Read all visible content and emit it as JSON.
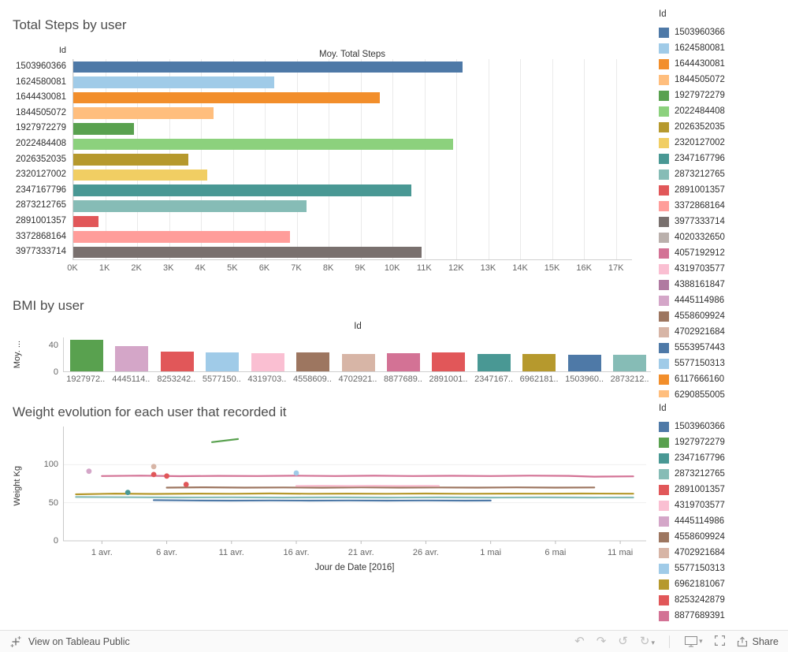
{
  "chart_data": [
    {
      "type": "bar",
      "orientation": "horizontal",
      "title": "Total Steps by user",
      "col_header": "Id",
      "xlabel": "Moy. Total Steps",
      "xlim": [
        0,
        17500
      ],
      "x_ticks": [
        {
          "label": "0K",
          "value": 0
        },
        {
          "label": "1K",
          "value": 1000
        },
        {
          "label": "2K",
          "value": 2000
        },
        {
          "label": "3K",
          "value": 3000
        },
        {
          "label": "4K",
          "value": 4000
        },
        {
          "label": "5K",
          "value": 5000
        },
        {
          "label": "6K",
          "value": 6000
        },
        {
          "label": "7K",
          "value": 7000
        },
        {
          "label": "8K",
          "value": 8000
        },
        {
          "label": "9K",
          "value": 9000
        },
        {
          "label": "10K",
          "value": 10000
        },
        {
          "label": "11K",
          "value": 11000
        },
        {
          "label": "12K",
          "value": 12000
        },
        {
          "label": "13K",
          "value": 13000
        },
        {
          "label": "14K",
          "value": 14000
        },
        {
          "label": "15K",
          "value": 15000
        },
        {
          "label": "16K",
          "value": 16000
        },
        {
          "label": "17K",
          "value": 17000
        }
      ],
      "bars": [
        {
          "id": "1503960366",
          "value": 12200,
          "color": "#4e79a7"
        },
        {
          "id": "1624580081",
          "value": 6300,
          "color": "#a0cbe8"
        },
        {
          "id": "1644430081",
          "value": 9600,
          "color": "#f28e2b"
        },
        {
          "id": "1844505072",
          "value": 4400,
          "color": "#ffbe7d"
        },
        {
          "id": "1927972279",
          "value": 1900,
          "color": "#59a14f"
        },
        {
          "id": "2022484408",
          "value": 11900,
          "color": "#8cd17d"
        },
        {
          "id": "2026352035",
          "value": 3600,
          "color": "#b6992d"
        },
        {
          "id": "2320127002",
          "value": 4200,
          "color": "#f1ce63"
        },
        {
          "id": "2347167796",
          "value": 10600,
          "color": "#499894"
        },
        {
          "id": "2873212765",
          "value": 7300,
          "color": "#86bcb6"
        },
        {
          "id": "2891001357",
          "value": 800,
          "color": "#e15759"
        },
        {
          "id": "3372868164",
          "value": 6800,
          "color": "#ff9d9a"
        },
        {
          "id": "3977333714",
          "value": 10900,
          "color": "#79706e"
        }
      ]
    },
    {
      "type": "bar",
      "orientation": "vertical",
      "title": "BMI by user",
      "col_header": "Id",
      "ylabel": "Moy. ...",
      "ylim": [
        0,
        52
      ],
      "y_ticks": [
        40,
        0
      ],
      "bars": [
        {
          "label": "1927972..",
          "value": 47,
          "color": "#59a14f"
        },
        {
          "label": "4445114..",
          "value": 37.5,
          "color": "#d4a6c8"
        },
        {
          "label": "8253242..",
          "value": 30,
          "color": "#e15759"
        },
        {
          "label": "5577150..",
          "value": 28,
          "color": "#a0cbe8"
        },
        {
          "label": "4319703..",
          "value": 27.5,
          "color": "#fabfd2"
        },
        {
          "label": "4558609..",
          "value": 28,
          "color": "#9d7660"
        },
        {
          "label": "4702921..",
          "value": 26.5,
          "color": "#d7b5a6"
        },
        {
          "label": "8877689..",
          "value": 27.5,
          "color": "#d37295"
        },
        {
          "label": "2891001..",
          "value": 28.5,
          "color": "#e15759"
        },
        {
          "label": "2347167..",
          "value": 26,
          "color": "#499894"
        },
        {
          "label": "6962181..",
          "value": 25.5,
          "color": "#b6992d"
        },
        {
          "label": "1503960..",
          "value": 25,
          "color": "#4e79a7"
        },
        {
          "label": "2873212..",
          "value": 24.5,
          "color": "#86bcb6"
        }
      ]
    },
    {
      "type": "line",
      "title": "Weight evolution for each user that recorded it",
      "ylabel": "Weight Kg",
      "xlabel": "Jour de Date [2016]",
      "ylim": [
        0,
        150
      ],
      "y_ticks": [
        100,
        50,
        0
      ],
      "x_domain_days": [
        -1,
        44
      ],
      "x_ticks": [
        {
          "day": 2,
          "label": "1 avr."
        },
        {
          "day": 7,
          "label": "6 avr."
        },
        {
          "day": 12,
          "label": "11 avr."
        },
        {
          "day": 17,
          "label": "16 avr."
        },
        {
          "day": 22,
          "label": "21 avr."
        },
        {
          "day": 27,
          "label": "26 avr."
        },
        {
          "day": 32,
          "label": "1 mai"
        },
        {
          "day": 37,
          "label": "6 mai"
        },
        {
          "day": 42,
          "label": "11 mai"
        }
      ],
      "series": [
        {
          "id": "8877689391",
          "color": "#d37295",
          "style": "line",
          "points": [
            [
              2,
              85
            ],
            [
              5,
              85.5
            ],
            [
              8,
              84.8
            ],
            [
              11,
              85.2
            ],
            [
              14,
              85
            ],
            [
              17,
              85.4
            ],
            [
              20,
              85
            ],
            [
              23,
              85.4
            ],
            [
              26,
              85
            ],
            [
              29,
              85.3
            ],
            [
              32,
              85
            ],
            [
              35,
              85.5
            ],
            [
              38,
              85.2
            ],
            [
              40,
              84.2
            ],
            [
              43,
              84.6
            ]
          ]
        },
        {
          "id": "1927972279",
          "color": "#59a14f",
          "style": "line",
          "points": [
            [
              10.5,
              129.5
            ],
            [
              12.5,
              133.5
            ]
          ]
        },
        {
          "id": "4558609924",
          "color": "#9d7660",
          "style": "line",
          "points": [
            [
              7,
              69.8
            ],
            [
              10,
              70.2
            ],
            [
              13,
              69.8
            ],
            [
              16,
              70
            ],
            [
              19,
              69.7
            ],
            [
              22,
              70.1
            ],
            [
              25,
              69.8
            ],
            [
              28,
              70
            ],
            [
              31,
              69.8
            ],
            [
              34,
              70.1
            ],
            [
              37,
              69.8
            ],
            [
              40,
              70
            ]
          ]
        },
        {
          "id": "6962181067",
          "color": "#b6992d",
          "style": "line",
          "points": [
            [
              0,
              61
            ],
            [
              3,
              62
            ],
            [
              6,
              61.5
            ],
            [
              9,
              62
            ],
            [
              12,
              61.8
            ],
            [
              15,
              62.2
            ],
            [
              18,
              61.8
            ],
            [
              21,
              62
            ],
            [
              24,
              61.8
            ],
            [
              27,
              62.1
            ],
            [
              30,
              61.8
            ],
            [
              33,
              62
            ],
            [
              36,
              61.9
            ],
            [
              39,
              62.1
            ],
            [
              43,
              61.9
            ]
          ]
        },
        {
          "id": "2873212765",
          "color": "#86bcb6",
          "style": "line",
          "points": [
            [
              0,
              57.5
            ],
            [
              4,
              57.2
            ],
            [
              8,
              56.9
            ],
            [
              12,
              57.1
            ],
            [
              16,
              56.8
            ],
            [
              20,
              57
            ],
            [
              24,
              56.8
            ],
            [
              28,
              57
            ],
            [
              32,
              56.8
            ],
            [
              36,
              57
            ],
            [
              40,
              56.8
            ],
            [
              43,
              56.9
            ]
          ]
        },
        {
          "id": "1503960366",
          "color": "#4e79a7",
          "style": "line",
          "points": [
            [
              6,
              53.4
            ],
            [
              9,
              53
            ],
            [
              12,
              52.8
            ],
            [
              15,
              53
            ],
            [
              18,
              52.8
            ],
            [
              21,
              53
            ],
            [
              24,
              52.8
            ],
            [
              27,
              53
            ],
            [
              30,
              52.8
            ],
            [
              32,
              52.9
            ]
          ]
        },
        {
          "id": "4319703577",
          "color": "#fabfd2",
          "style": "line",
          "points": [
            [
              17,
              72
            ],
            [
              19,
              72.3
            ],
            [
              21,
              72
            ],
            [
              23,
              72.3
            ],
            [
              25,
              72
            ],
            [
              27,
              72.2
            ],
            [
              28,
              72
            ]
          ]
        },
        {
          "id": "4445114986",
          "color": "#d4a6c8",
          "style": "points",
          "points": [
            [
              1,
              91.3
            ]
          ]
        },
        {
          "id": "4702921684",
          "color": "#d7b5a6",
          "style": "points",
          "points": [
            [
              6,
              97.5
            ]
          ]
        },
        {
          "id": "8253242879",
          "color": "#e15759",
          "style": "points",
          "points": [
            [
              6,
              87
            ],
            [
              7,
              85
            ],
            [
              8.5,
              74
            ]
          ]
        },
        {
          "id": "5577150313",
          "color": "#a0cbe8",
          "style": "points",
          "points": [
            [
              17,
              89
            ]
          ]
        },
        {
          "id": "2347167796",
          "color": "#499894",
          "style": "points",
          "points": [
            [
              4,
              63.5
            ]
          ]
        }
      ]
    }
  ],
  "legends": [
    {
      "title": "Id",
      "clipped": true,
      "items": [
        {
          "id": "1503960366",
          "color": "#4e79a7"
        },
        {
          "id": "1624580081",
          "color": "#a0cbe8"
        },
        {
          "id": "1644430081",
          "color": "#f28e2b"
        },
        {
          "id": "1844505072",
          "color": "#ffbe7d"
        },
        {
          "id": "1927972279",
          "color": "#59a14f"
        },
        {
          "id": "2022484408",
          "color": "#8cd17d"
        },
        {
          "id": "2026352035",
          "color": "#b6992d"
        },
        {
          "id": "2320127002",
          "color": "#f1ce63"
        },
        {
          "id": "2347167796",
          "color": "#499894"
        },
        {
          "id": "2873212765",
          "color": "#86bcb6"
        },
        {
          "id": "2891001357",
          "color": "#e15759"
        },
        {
          "id": "3372868164",
          "color": "#ff9d9a"
        },
        {
          "id": "3977333714",
          "color": "#79706e"
        },
        {
          "id": "4020332650",
          "color": "#bab0ac"
        },
        {
          "id": "4057192912",
          "color": "#d37295"
        },
        {
          "id": "4319703577",
          "color": "#fabfd2"
        },
        {
          "id": "4388161847",
          "color": "#b07aa1"
        },
        {
          "id": "4445114986",
          "color": "#d4a6c8"
        },
        {
          "id": "4558609924",
          "color": "#9d7660"
        },
        {
          "id": "4702921684",
          "color": "#d7b5a6"
        },
        {
          "id": "5553957443",
          "color": "#4e79a7"
        },
        {
          "id": "5577150313",
          "color": "#a0cbe8"
        },
        {
          "id": "6117666160",
          "color": "#f28e2b"
        },
        {
          "id": "6290855005",
          "color": "#ffbe7d"
        }
      ]
    },
    {
      "title": "Id",
      "clipped": false,
      "items": [
        {
          "id": "1503960366",
          "color": "#4e79a7"
        },
        {
          "id": "1927972279",
          "color": "#59a14f"
        },
        {
          "id": "2347167796",
          "color": "#499894"
        },
        {
          "id": "2873212765",
          "color": "#86bcb6"
        },
        {
          "id": "2891001357",
          "color": "#e15759"
        },
        {
          "id": "4319703577",
          "color": "#fabfd2"
        },
        {
          "id": "4445114986",
          "color": "#d4a6c8"
        },
        {
          "id": "4558609924",
          "color": "#9d7660"
        },
        {
          "id": "4702921684",
          "color": "#d7b5a6"
        },
        {
          "id": "5577150313",
          "color": "#a0cbe8"
        },
        {
          "id": "6962181067",
          "color": "#b6992d"
        },
        {
          "id": "8253242879",
          "color": "#e15759"
        },
        {
          "id": "8877689391",
          "color": "#d37295"
        }
      ]
    }
  ],
  "toolbar": {
    "view_label": "View on Tableau Public",
    "share_label": "Share",
    "icons": {
      "undo": "↶",
      "redo": "↷",
      "replay": "↺",
      "refresh": "↻",
      "caret": "▾",
      "separator": "│"
    }
  }
}
